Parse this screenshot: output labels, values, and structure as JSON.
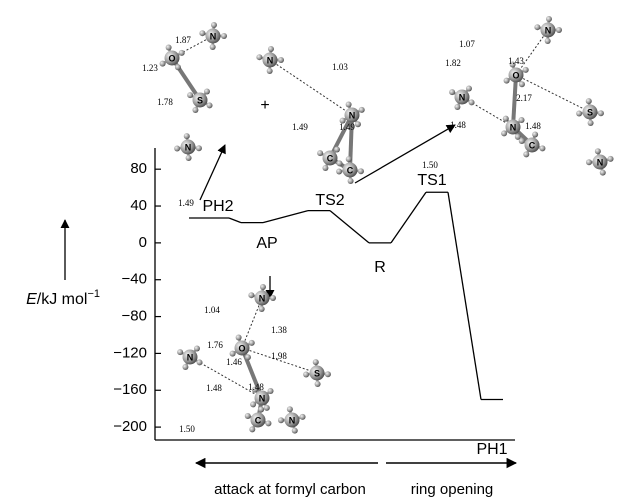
{
  "chart_data": {
    "type": "line",
    "ylabel": {
      "symbol": "E",
      "unit": "/kJ mol",
      "exponent": "−1"
    },
    "categories": [
      "PH2",
      "AP",
      "TS2",
      "R",
      "TS1",
      "PH1"
    ],
    "values": [
      27,
      22,
      35,
      0,
      55,
      -170
    ],
    "color": "#000000",
    "ylim": [
      -214,
      103
    ],
    "yticks": [
      80,
      40,
      0,
      {
        "value": -40,
        "label": "−40"
      },
      {
        "value": -80,
        "label": "−80"
      },
      {
        "value": -120,
        "label": "−120"
      },
      {
        "value": -160,
        "label": "−160"
      },
      {
        "value": -200,
        "label": "−200"
      }
    ],
    "plus_sign": "+",
    "x_annotations": [
      "attack at formyl carbon",
      "ring opening"
    ],
    "structures": [
      {
        "atoms": [
          "N",
          "O",
          "S",
          "N"
        ],
        "distances": [
          "1.87",
          "1.23",
          "1.78"
        ]
      },
      {
        "atoms": [
          "N",
          "N",
          "C",
          "C"
        ],
        "distances": [
          "1.03",
          "1.49",
          "1.49",
          "1.49"
        ]
      },
      {
        "atoms": [
          "N",
          "O",
          "N",
          "S",
          "N",
          "C",
          "N"
        ],
        "distances": [
          "1.07",
          "1.43",
          "1.82",
          "2.17",
          "1.48",
          "1.48",
          "1.50"
        ]
      },
      {
        "atoms": [
          "N",
          "O",
          "N",
          "S",
          "N",
          "C",
          "N"
        ],
        "distances": [
          "1.04",
          "1.38",
          "1.76",
          "1.46",
          "1.98",
          "1.48",
          "1.48",
          "1.50"
        ]
      }
    ]
  }
}
